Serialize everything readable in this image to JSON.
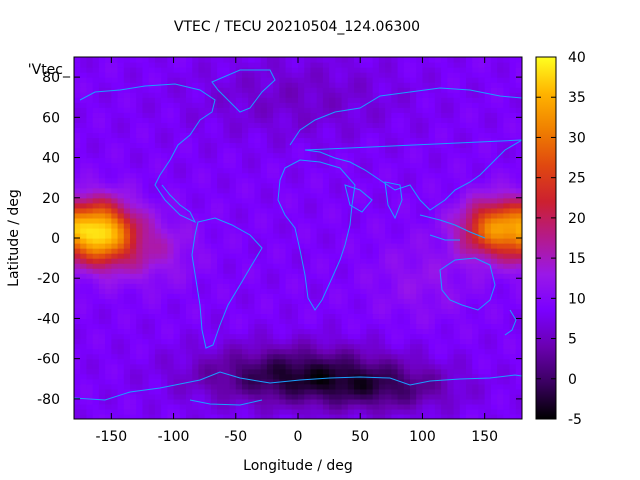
{
  "chart_data": {
    "type": "heatmap",
    "title": "VTEC / TECU 20210504_124.06300",
    "xlabel": "Longitude / deg",
    "ylabel": "Latitude / deg",
    "xlim": [
      -180,
      180
    ],
    "ylim": [
      -90,
      90
    ],
    "xticks": [
      -150,
      -100,
      -50,
      0,
      50,
      100,
      150
    ],
    "yticks": [
      -80,
      -60,
      -40,
      -20,
      0,
      20,
      40,
      60,
      80
    ],
    "legend_label": "'Vtec_",
    "colorbar": {
      "range": [
        -5,
        40
      ],
      "ticks": [
        -5,
        0,
        5,
        10,
        15,
        20,
        25,
        30,
        35,
        40
      ],
      "palette": [
        "#000000",
        "#3a0060",
        "#6a00b0",
        "#7a00ff",
        "#9a18e8",
        "#b41a8c",
        "#cc2030",
        "#e04810",
        "#f08000",
        "#ffb400",
        "#ffff20"
      ]
    },
    "features": [
      {
        "name": "equatorial anomaly peak (Pacific, west)",
        "lon": -160,
        "lat": 2,
        "value": 36
      },
      {
        "name": "equatorial anomaly peak (Pacific, east)",
        "lon": 160,
        "lat": 4,
        "value": 32
      },
      {
        "name": "background mid-latitudes",
        "value": 8
      },
      {
        "name": "Antarctic minimum",
        "lon": 0,
        "lat": -68,
        "value": -3
      }
    ]
  }
}
